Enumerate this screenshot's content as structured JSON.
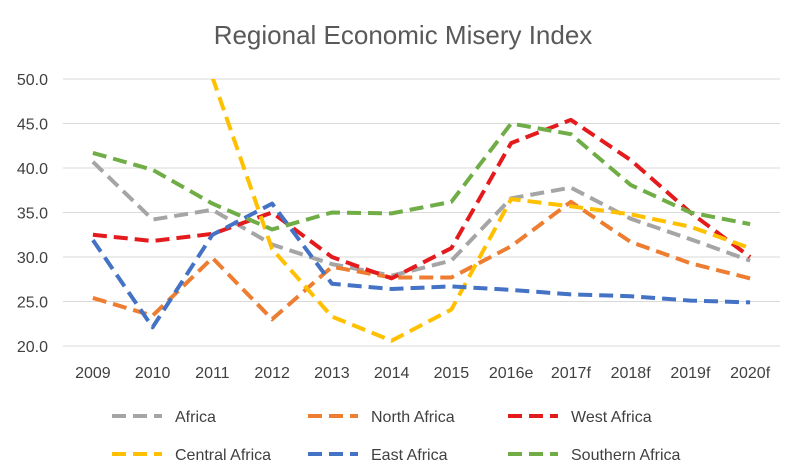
{
  "chart_data": {
    "type": "line",
    "title": "Regional Economic Misery Index",
    "xlabel": "",
    "ylabel": "",
    "ylim": [
      20,
      50
    ],
    "yticks": [
      "20.0",
      "25.0",
      "30.0",
      "35.0",
      "40.0",
      "45.0",
      "50.0"
    ],
    "grid": true,
    "legend_position": "bottom",
    "categories": [
      "2009",
      "2010",
      "2011",
      "2012",
      "2013",
      "2014",
      "2015",
      "2016e",
      "2017f",
      "2018f",
      "2019f",
      "2020f"
    ],
    "series": [
      {
        "name": "Africa",
        "color": "#a5a5a5",
        "values": [
          40.7,
          34.2,
          35.3,
          31.4,
          29.2,
          27.9,
          29.6,
          36.6,
          37.8,
          34.3,
          32.0,
          29.6
        ]
      },
      {
        "name": "North Africa",
        "color": "#ed7d31",
        "values": [
          25.4,
          23.4,
          29.9,
          23.0,
          28.9,
          27.7,
          27.7,
          31.2,
          36.2,
          31.7,
          29.3,
          27.6
        ]
      },
      {
        "name": "West Africa",
        "color": "#e41a1c",
        "values": [
          32.5,
          31.8,
          32.6,
          35.0,
          30.0,
          27.6,
          31.0,
          42.8,
          45.4,
          40.9,
          35.0,
          30.0
        ]
      },
      {
        "name": "Central Africa",
        "color": "#ffc000",
        "values": [
          null,
          null,
          50.2,
          30.9,
          23.3,
          20.6,
          24.1,
          36.5,
          35.7,
          34.8,
          33.4,
          31.0
        ]
      },
      {
        "name": "East Africa",
        "color": "#4472c4",
        "values": [
          31.9,
          22.1,
          32.5,
          36.0,
          27.0,
          26.4,
          26.7,
          26.3,
          25.8,
          25.6,
          25.1,
          24.9
        ]
      },
      {
        "name": "Southern Africa",
        "color": "#70ad47",
        "values": [
          41.7,
          39.8,
          36.0,
          33.1,
          35.0,
          34.9,
          36.2,
          45.0,
          43.8,
          38.1,
          35.0,
          33.7
        ]
      }
    ]
  }
}
